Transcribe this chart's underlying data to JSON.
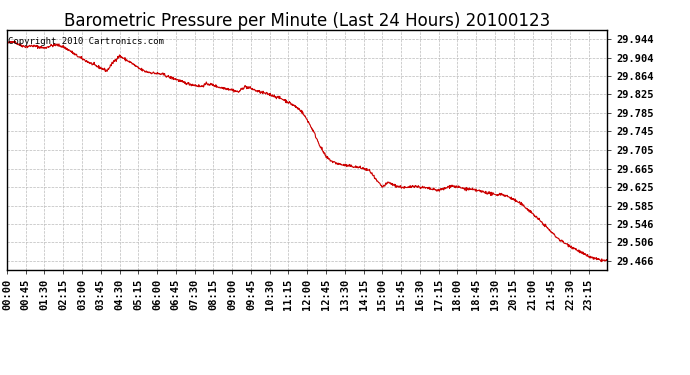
{
  "title": "Barometric Pressure per Minute (Last 24 Hours) 20100123",
  "copyright_text": "Copyright 2010 Cartronics.com",
  "line_color": "#cc0000",
  "background_color": "#ffffff",
  "grid_color": "#bbbbbb",
  "yticks": [
    29.944,
    29.904,
    29.864,
    29.825,
    29.785,
    29.745,
    29.705,
    29.665,
    29.625,
    29.585,
    29.546,
    29.506,
    29.466
  ],
  "ylim": [
    29.446,
    29.964
  ],
  "xtick_labels": [
    "00:00",
    "00:45",
    "01:30",
    "02:15",
    "03:00",
    "03:45",
    "04:30",
    "05:15",
    "06:00",
    "06:45",
    "07:30",
    "08:15",
    "09:00",
    "09:45",
    "10:30",
    "11:15",
    "12:00",
    "12:45",
    "13:30",
    "14:15",
    "15:00",
    "15:45",
    "16:30",
    "17:15",
    "18:00",
    "18:45",
    "19:30",
    "20:15",
    "21:00",
    "21:45",
    "22:30",
    "23:15"
  ],
  "title_fontsize": 12,
  "tick_fontsize": 7.5,
  "copyright_fontsize": 6.5,
  "keypoints": [
    [
      0,
      29.935
    ],
    [
      15,
      29.94
    ],
    [
      30,
      29.932
    ],
    [
      45,
      29.928
    ],
    [
      60,
      29.93
    ],
    [
      75,
      29.928
    ],
    [
      90,
      29.925
    ],
    [
      105,
      29.93
    ],
    [
      120,
      29.932
    ],
    [
      135,
      29.928
    ],
    [
      150,
      29.92
    ],
    [
      165,
      29.91
    ],
    [
      180,
      29.902
    ],
    [
      195,
      29.895
    ],
    [
      210,
      29.888
    ],
    [
      225,
      29.882
    ],
    [
      240,
      29.876
    ],
    [
      255,
      29.895
    ],
    [
      270,
      29.908
    ],
    [
      285,
      29.9
    ],
    [
      300,
      29.892
    ],
    [
      315,
      29.882
    ],
    [
      330,
      29.875
    ],
    [
      345,
      29.872
    ],
    [
      360,
      29.87
    ],
    [
      375,
      29.868
    ],
    [
      390,
      29.862
    ],
    [
      405,
      29.858
    ],
    [
      420,
      29.852
    ],
    [
      435,
      29.848
    ],
    [
      450,
      29.845
    ],
    [
      465,
      29.842
    ],
    [
      480,
      29.848
    ],
    [
      495,
      29.845
    ],
    [
      510,
      29.84
    ],
    [
      525,
      29.838
    ],
    [
      540,
      29.835
    ],
    [
      555,
      29.83
    ],
    [
      570,
      29.842
    ],
    [
      585,
      29.838
    ],
    [
      600,
      29.832
    ],
    [
      615,
      29.828
    ],
    [
      630,
      29.825
    ],
    [
      645,
      29.82
    ],
    [
      660,
      29.815
    ],
    [
      675,
      29.808
    ],
    [
      690,
      29.8
    ],
    [
      705,
      29.79
    ],
    [
      720,
      29.77
    ],
    [
      735,
      29.745
    ],
    [
      750,
      29.715
    ],
    [
      765,
      29.69
    ],
    [
      780,
      29.68
    ],
    [
      795,
      29.675
    ],
    [
      810,
      29.672
    ],
    [
      825,
      29.67
    ],
    [
      840,
      29.668
    ],
    [
      855,
      29.665
    ],
    [
      870,
      29.66
    ],
    [
      885,
      29.64
    ],
    [
      900,
      29.625
    ],
    [
      915,
      29.635
    ],
    [
      930,
      29.628
    ],
    [
      945,
      29.625
    ],
    [
      960,
      29.623
    ],
    [
      975,
      29.628
    ],
    [
      990,
      29.625
    ],
    [
      1005,
      29.623
    ],
    [
      1020,
      29.62
    ],
    [
      1035,
      29.618
    ],
    [
      1050,
      29.622
    ],
    [
      1065,
      29.628
    ],
    [
      1080,
      29.625
    ],
    [
      1095,
      29.622
    ],
    [
      1110,
      29.62
    ],
    [
      1125,
      29.618
    ],
    [
      1140,
      29.615
    ],
    [
      1155,
      29.612
    ],
    [
      1170,
      29.608
    ],
    [
      1185,
      29.61
    ],
    [
      1200,
      29.605
    ],
    [
      1215,
      29.598
    ],
    [
      1230,
      29.59
    ],
    [
      1245,
      29.58
    ],
    [
      1260,
      29.568
    ],
    [
      1275,
      29.555
    ],
    [
      1290,
      29.542
    ],
    [
      1305,
      29.528
    ],
    [
      1320,
      29.515
    ],
    [
      1335,
      29.505
    ],
    [
      1350,
      29.498
    ],
    [
      1365,
      29.49
    ],
    [
      1380,
      29.482
    ],
    [
      1395,
      29.475
    ],
    [
      1410,
      29.47
    ],
    [
      1425,
      29.467
    ],
    [
      1439,
      29.466
    ]
  ]
}
